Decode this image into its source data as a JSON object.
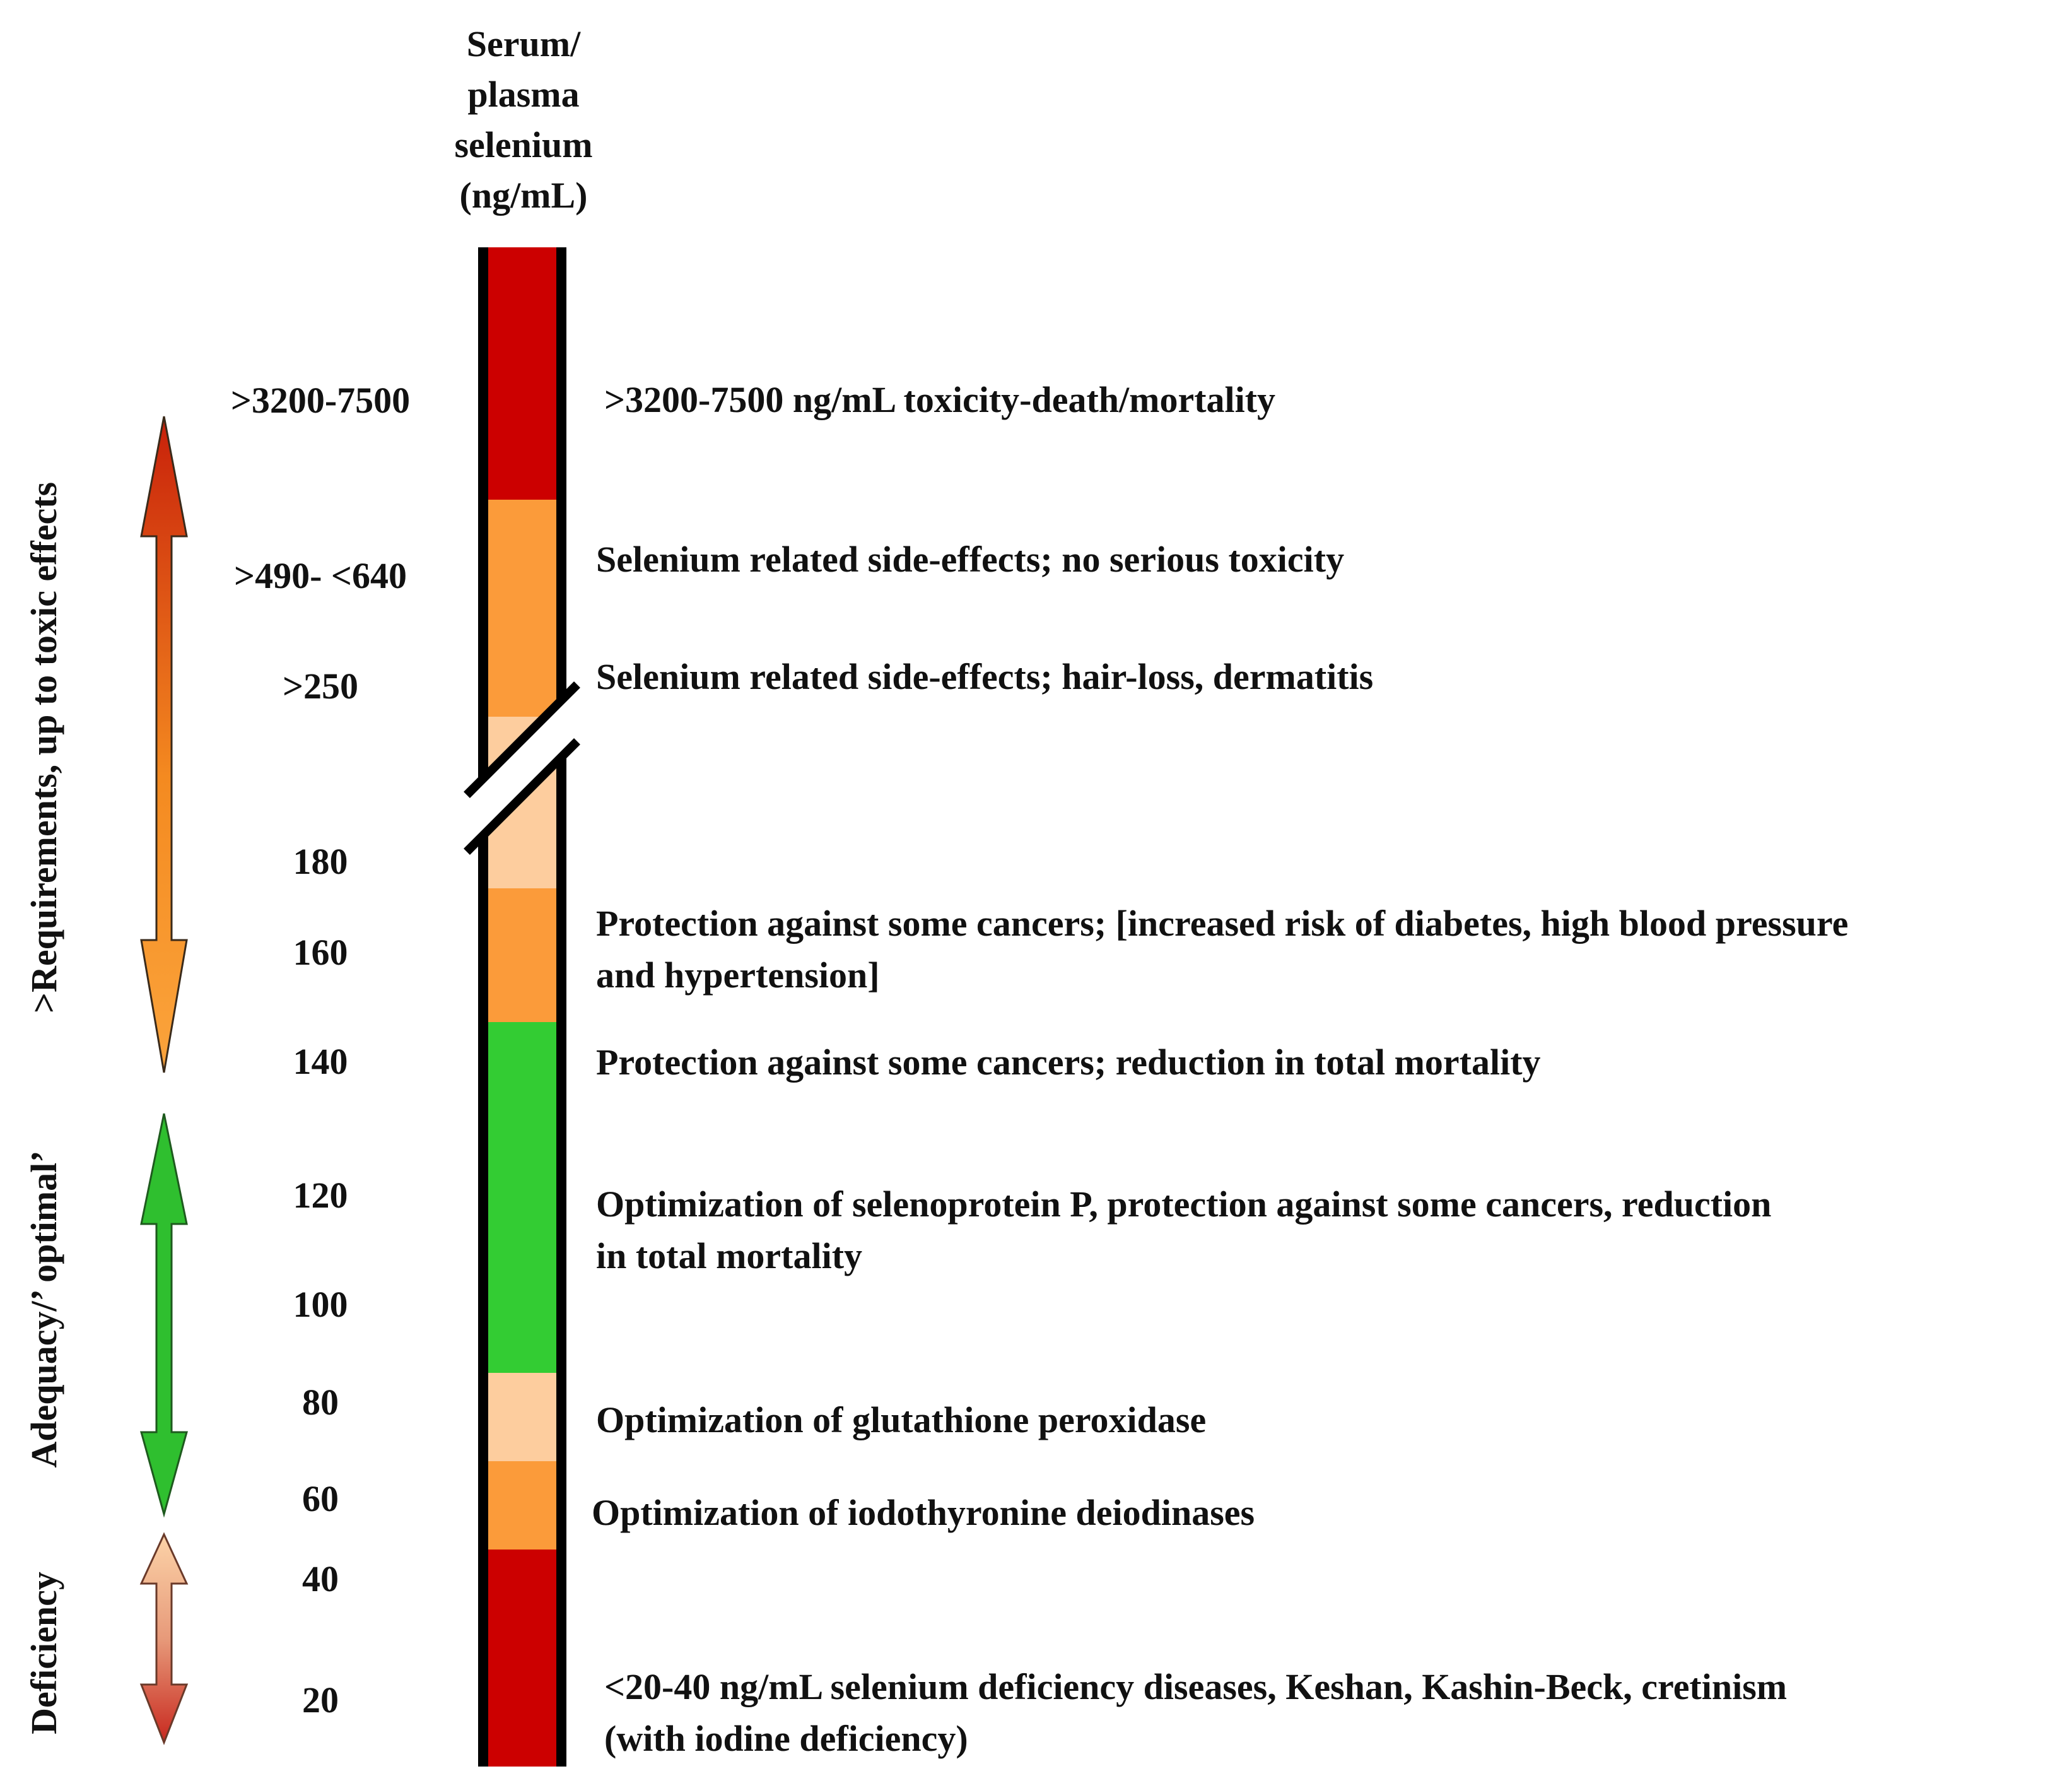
{
  "header": {
    "line1": "Serum/",
    "line2": "plasma",
    "line3": "selenium",
    "line4": "(ng/mL)"
  },
  "levels": [
    ">3200-7500",
    ">490- <640",
    ">250",
    "180",
    "160",
    "140",
    "120",
    "100",
    "80",
    "60",
    "40",
    "20"
  ],
  "descriptions": {
    "toxicity": ">3200-7500 ng/mL toxicity-death/mortality",
    "side_effects_no_serious": "Selenium related side-effects; no serious toxicity",
    "side_effects_hair": "Selenium related side-effects; hair-loss, dermatitis",
    "cancer_diabetes_1": "Protection against some cancers; [increased risk of diabetes, high blood pressure",
    "cancer_diabetes_2": "and hypertension]",
    "cancer_mortality": "Protection against some cancers; reduction in total mortality",
    "selenoprotein_1": "Optimization of selenoprotein P, protection against some cancers, reduction",
    "selenoprotein_2": "in total mortality",
    "glutathione": "Optimization of glutathione peroxidase",
    "iodothyronine": "Optimization of iodothyronine deiodinases",
    "deficiency_1": "<20-40 ng/mL selenium deficiency diseases, Keshan, Kashin-Beck, cretinism",
    "deficiency_2": "(with iodine deficiency)"
  },
  "ranges": {
    "requirements": ">Requirements, up to toxic effects",
    "adequacy": "Adequacy/’ optimal’",
    "deficiency": "Deficiency"
  },
  "colors": {
    "red": "#cc0000",
    "orange": "#fb9b3a",
    "peach": "#fdcd9e",
    "green": "#33cc33",
    "bar_border": "#000000"
  }
}
